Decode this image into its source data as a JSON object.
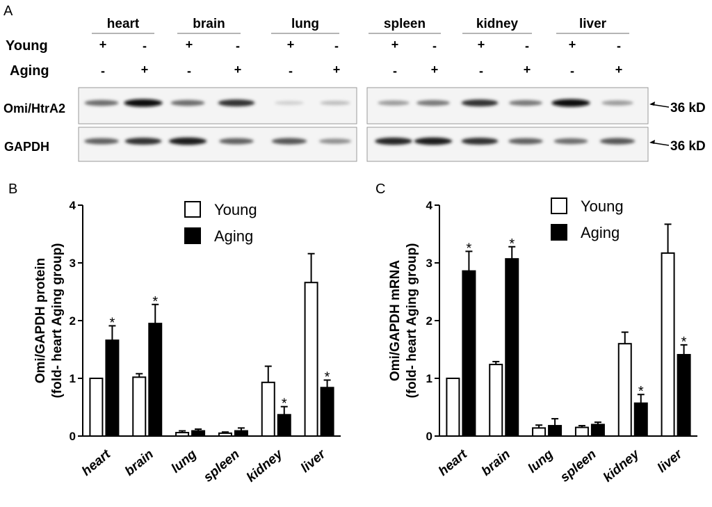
{
  "panel_a": {
    "letter": "A",
    "tissues": [
      "heart",
      "brain",
      "lung",
      "spleen",
      "kidney",
      "liver"
    ],
    "rows": [
      {
        "label": "Young",
        "signs": [
          "+",
          "-",
          "+",
          "-",
          "+",
          "-",
          "+",
          "-",
          "+",
          "-",
          "+",
          "-"
        ]
      },
      {
        "label": "Aging",
        "signs": [
          "-",
          "+",
          "-",
          "+",
          "-",
          "+",
          "-",
          "+",
          "-",
          "+",
          "-",
          "+"
        ]
      }
    ],
    "blots": [
      {
        "label": "Omi/HtrA2",
        "size": "36 kD",
        "intensity": [
          0.55,
          0.95,
          0.55,
          0.8,
          0.12,
          0.2,
          0.35,
          0.5,
          0.8,
          0.5,
          0.95,
          0.35
        ]
      },
      {
        "label": "GAPDH",
        "size": "36 kD",
        "intensity": [
          0.6,
          0.8,
          0.9,
          0.6,
          0.65,
          0.4,
          0.85,
          0.9,
          0.8,
          0.6,
          0.55,
          0.65
        ]
      }
    ]
  },
  "chart_data": [
    {
      "type": "bar",
      "panel": "B",
      "title": "",
      "ylabel": [
        "Omi/GAPDH protein",
        "(fold- heart Aging group)"
      ],
      "ylim": [
        0,
        4
      ],
      "yticks": [
        "0",
        "1",
        "2",
        "3",
        "4"
      ],
      "categories": [
        "heart",
        "brain",
        "lung",
        "spleen",
        "kidney",
        "liver"
      ],
      "series": [
        {
          "name": "Young",
          "color": "#ffffff",
          "values": [
            1.0,
            1.02,
            0.06,
            0.05,
            0.93,
            2.66
          ],
          "errors": [
            0.0,
            0.06,
            0.03,
            0.02,
            0.28,
            0.5
          ],
          "significant": [
            false,
            false,
            false,
            false,
            false,
            false
          ]
        },
        {
          "name": "Aging",
          "color": "#000000",
          "values": [
            1.66,
            1.95,
            0.09,
            0.09,
            0.37,
            0.84
          ],
          "errors": [
            0.25,
            0.33,
            0.03,
            0.05,
            0.14,
            0.13
          ],
          "significant": [
            true,
            true,
            false,
            false,
            true,
            true
          ]
        }
      ],
      "annotation": "*",
      "legend": "top-center"
    },
    {
      "type": "bar",
      "panel": "C",
      "title": "",
      "ylabel": [
        "Omi/GAPDH mRNA",
        "(fold- heart Aging group)"
      ],
      "ylim": [
        0,
        4
      ],
      "yticks": [
        "0",
        "1",
        "2",
        "3",
        "4"
      ],
      "categories": [
        "heart",
        "brain",
        "lung",
        "spleen",
        "kidney",
        "liver"
      ],
      "series": [
        {
          "name": "Young",
          "color": "#ffffff",
          "values": [
            1.0,
            1.24,
            0.14,
            0.15,
            1.6,
            3.17
          ],
          "errors": [
            0.0,
            0.05,
            0.05,
            0.03,
            0.2,
            0.5
          ],
          "significant": [
            false,
            false,
            false,
            false,
            false,
            false
          ]
        },
        {
          "name": "Aging",
          "color": "#000000",
          "values": [
            2.86,
            3.07,
            0.18,
            0.2,
            0.57,
            1.41
          ],
          "errors": [
            0.34,
            0.21,
            0.12,
            0.04,
            0.15,
            0.17
          ],
          "significant": [
            true,
            true,
            false,
            false,
            true,
            true
          ]
        }
      ],
      "annotation": "*",
      "legend": "top-center"
    }
  ]
}
